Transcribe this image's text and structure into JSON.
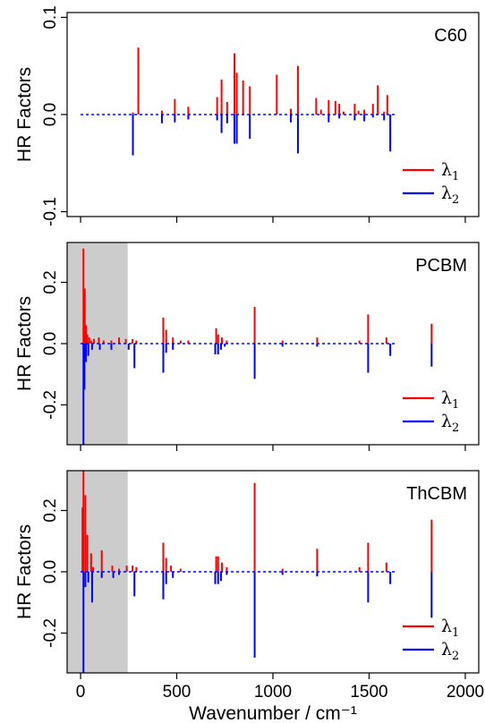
{
  "chart_data": [
    {
      "type": "bar",
      "title": "C60",
      "ylabel": "HR Factors",
      "xlabel": "",
      "xlim": [
        -70,
        2070
      ],
      "ylim": [
        -0.105,
        0.105
      ],
      "yticks": [
        -0.1,
        0.0,
        0.1
      ],
      "ytick_labels": [
        "-0.1",
        "0.0",
        "0.1"
      ],
      "xticks": [
        0,
        500,
        1000,
        1500,
        2000
      ],
      "shaded_region": null,
      "legend": {
        "position": "bottom-right",
        "entries": [
          "λ1",
          "λ2"
        ]
      },
      "series": [
        {
          "name": "λ1",
          "color": "#ff0000",
          "direction": "up",
          "x": [
            272,
            300,
            423,
            490,
            560,
            710,
            733,
            762,
            800,
            812,
            845,
            880,
            1020,
            1093,
            1130,
            1225,
            1250,
            1290,
            1325,
            1345,
            1367,
            1425,
            1445,
            1475,
            1520,
            1545,
            1578,
            1595
          ],
          "values": [
            0.002,
            0.069,
            0.004,
            0.016,
            0.008,
            0.018,
            0.036,
            0.013,
            0.063,
            0.043,
            0.035,
            0.029,
            0.041,
            0.006,
            0.05,
            0.017,
            0.005,
            0.015,
            0.014,
            0.011,
            0.003,
            0.011,
            0.004,
            0.005,
            0.011,
            0.03,
            0.003,
            0.02
          ]
        },
        {
          "name": "λ2",
          "color": "#0000ff",
          "direction": "down",
          "x": [
            272,
            423,
            490,
            560,
            710,
            733,
            762,
            800,
            812,
            880,
            1093,
            1130,
            1290,
            1345,
            1425,
            1475,
            1520,
            1578,
            1610
          ],
          "values": [
            0.042,
            0.009,
            0.008,
            0.005,
            0.006,
            0.019,
            0.009,
            0.03,
            0.03,
            0.025,
            0.008,
            0.04,
            0.008,
            0.004,
            0.006,
            0.007,
            0.003,
            0.006,
            0.038
          ]
        }
      ]
    },
    {
      "type": "bar",
      "title": "PCBM",
      "ylabel": "HR Factors",
      "xlabel": "",
      "xlim": [
        -70,
        2070
      ],
      "ylim": [
        -0.33,
        0.33
      ],
      "yticks": [
        -0.2,
        0.0,
        0.2
      ],
      "ytick_labels": [
        "-0.2",
        "0.0",
        "0.2"
      ],
      "xticks": [
        0,
        500,
        1000,
        1500,
        2000
      ],
      "shaded_region": [
        -70,
        245
      ],
      "legend": {
        "position": "bottom-right",
        "entries": [
          "λ1",
          "λ2"
        ]
      },
      "series": [
        {
          "name": "λ1",
          "color": "#ff0000",
          "direction": "up",
          "x": [
            15,
            22,
            28,
            35,
            45,
            55,
            70,
            95,
            120,
            160,
            200,
            235,
            270,
            290,
            430,
            445,
            480,
            520,
            560,
            705,
            715,
            735,
            760,
            905,
            1050,
            1230,
            1450,
            1495,
            1590,
            1825
          ],
          "values": [
            0.31,
            0.18,
            0.06,
            0.03,
            0.02,
            0.01,
            0.015,
            0.02,
            0.01,
            0.01,
            0.02,
            0.015,
            0.015,
            0.01,
            0.085,
            0.045,
            0.02,
            0.01,
            0.01,
            0.05,
            0.03,
            0.02,
            0.01,
            0.12,
            0.01,
            0.02,
            0.01,
            0.095,
            0.02,
            0.065
          ]
        },
        {
          "name": "λ2",
          "color": "#0000ff",
          "direction": "down",
          "x": [
            15,
            20,
            28,
            40,
            60,
            100,
            160,
            250,
            280,
            430,
            445,
            480,
            700,
            715,
            730,
            750,
            905,
            1050,
            1230,
            1495,
            1610,
            1825
          ],
          "values": [
            0.33,
            0.15,
            0.06,
            0.04,
            0.02,
            0.02,
            0.02,
            0.02,
            0.08,
            0.095,
            0.03,
            0.02,
            0.035,
            0.035,
            0.02,
            0.01,
            0.115,
            0.01,
            0.01,
            0.095,
            0.04,
            0.075
          ]
        }
      ]
    },
    {
      "type": "bar",
      "title": "ThCBM",
      "ylabel": "HR Factors",
      "xlabel": "Wavenumber / cm⁻¹",
      "xlim": [
        -70,
        2070
      ],
      "ylim": [
        -0.33,
        0.33
      ],
      "yticks": [
        -0.2,
        0.0,
        0.2
      ],
      "ytick_labels": [
        "-0.2",
        "0.0",
        "0.2"
      ],
      "xticks": [
        0,
        500,
        1000,
        1500,
        2000
      ],
      "xtick_labels": [
        "0",
        "500",
        "1000",
        "1500",
        "2000"
      ],
      "shaded_region": [
        -70,
        245
      ],
      "legend": {
        "position": "bottom-right",
        "entries": [
          "λ1",
          "λ2"
        ]
      },
      "series": [
        {
          "name": "λ1",
          "color": "#ff0000",
          "direction": "up",
          "x": [
            10,
            15,
            25,
            35,
            55,
            65,
            110,
            165,
            200,
            240,
            270,
            290,
            430,
            445,
            470,
            520,
            705,
            715,
            735,
            760,
            905,
            1050,
            1230,
            1450,
            1495,
            1590,
            1825
          ],
          "values": [
            0.21,
            0.33,
            0.25,
            0.12,
            0.06,
            0.015,
            0.07,
            0.02,
            0.01,
            0.02,
            0.02,
            0.015,
            0.095,
            0.045,
            0.02,
            0.01,
            0.05,
            0.05,
            0.03,
            0.015,
            0.29,
            0.01,
            0.075,
            0.015,
            0.095,
            0.03,
            0.17
          ]
        },
        {
          "name": "λ2",
          "color": "#0000ff",
          "direction": "down",
          "x": [
            15,
            25,
            40,
            60,
            110,
            170,
            200,
            280,
            430,
            445,
            480,
            700,
            715,
            730,
            760,
            905,
            1050,
            1230,
            1495,
            1610,
            1825
          ],
          "values": [
            0.33,
            0.05,
            0.035,
            0.1,
            0.02,
            0.02,
            0.01,
            0.08,
            0.09,
            0.04,
            0.02,
            0.04,
            0.04,
            0.03,
            0.01,
            0.28,
            0.01,
            0.015,
            0.1,
            0.04,
            0.15
          ]
        }
      ]
    }
  ]
}
